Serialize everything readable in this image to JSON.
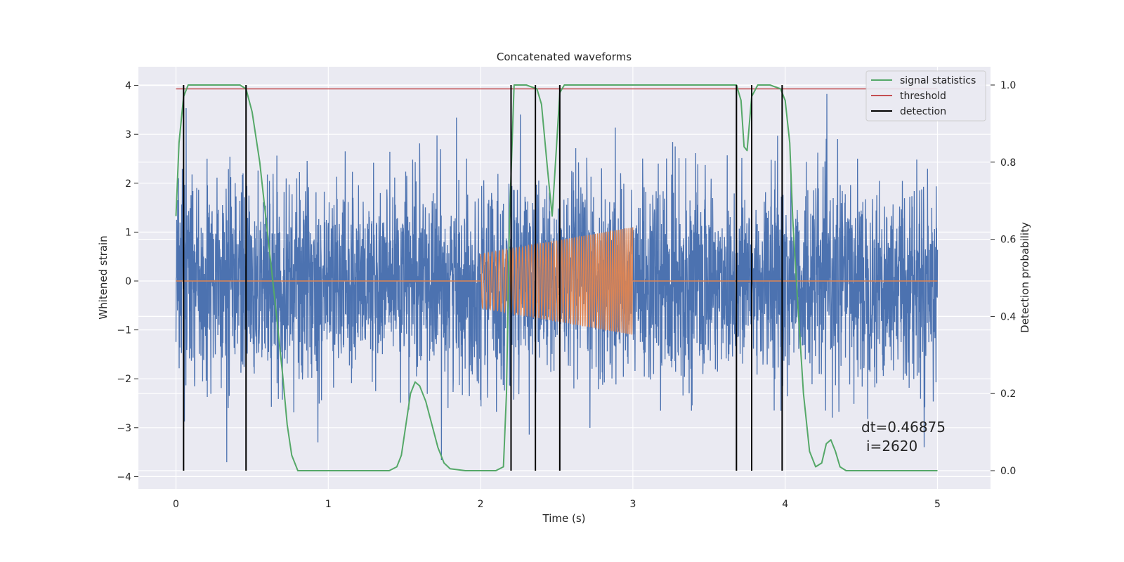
{
  "chart_data": {
    "type": "line",
    "title": "Concatenated waveforms",
    "xlabel": "Time (s)",
    "ylabel": "Whitened strain",
    "y2label": "Detection probability",
    "xlim": [
      -0.25,
      5.35
    ],
    "ylim": [
      -4.25,
      4.4
    ],
    "y2lim": [
      -0.05,
      1.04
    ],
    "xticks": [
      0,
      1,
      2,
      3,
      4,
      5
    ],
    "yticks": [
      -4,
      -3,
      -2,
      -1,
      0,
      1,
      2,
      3,
      4
    ],
    "y2ticks": [
      0.0,
      0.2,
      0.4,
      0.6,
      0.8,
      1.0
    ],
    "grid": true,
    "legend_position": "top-right",
    "colors": {
      "strain": "#4c72b0",
      "signal": "#dd8452",
      "statistics": "#55a868",
      "threshold": "#c44e52",
      "detection": "#000000",
      "background": "#eaeaf2"
    },
    "legend": [
      {
        "label": "signal statistics",
        "color": "#55a868"
      },
      {
        "label": "threshold",
        "color": "#c44e52"
      },
      {
        "label": "detection",
        "color": "#000000"
      }
    ],
    "series": [
      {
        "id": "strain",
        "axis": "left",
        "x_range": [
          0,
          5
        ],
        "amplitude_envelope": [
          -3.9,
          3.9
        ]
      },
      {
        "id": "injected_chirp",
        "axis": "left",
        "x_range": [
          2.0,
          3.0
        ],
        "amplitude_start": 0.55,
        "amplitude_end": 1.1
      },
      {
        "id": "signal_statistics",
        "axis": "right",
        "x": [
          0.0,
          0.02,
          0.05,
          0.08,
          0.15,
          0.3,
          0.42,
          0.46,
          0.5,
          0.55,
          0.6,
          0.65,
          0.7,
          0.73,
          0.76,
          0.8,
          0.9,
          1.2,
          1.4,
          1.45,
          1.48,
          1.51,
          1.54,
          1.57,
          1.6,
          1.64,
          1.68,
          1.72,
          1.76,
          1.8,
          1.9,
          2.1,
          2.15,
          2.17,
          2.19,
          2.22,
          2.3,
          2.37,
          2.4,
          2.44,
          2.47,
          2.5,
          2.52,
          2.55,
          2.6,
          3.0,
          3.4,
          3.68,
          3.71,
          3.73,
          3.75,
          3.78,
          3.82,
          3.9,
          3.97,
          4.0,
          4.03,
          4.05,
          4.08,
          4.12,
          4.16,
          4.2,
          4.24,
          4.27,
          4.3,
          4.33,
          4.36,
          4.4,
          4.6,
          4.9,
          5.0
        ],
        "y": [
          0.66,
          0.85,
          0.97,
          1.0,
          1.0,
          1.0,
          1.0,
          0.99,
          0.93,
          0.8,
          0.62,
          0.44,
          0.25,
          0.12,
          0.04,
          0.0,
          0.0,
          0.0,
          0.0,
          0.01,
          0.04,
          0.12,
          0.2,
          0.23,
          0.22,
          0.18,
          0.12,
          0.06,
          0.02,
          0.005,
          0.0,
          0.0,
          0.01,
          0.2,
          0.65,
          1.0,
          1.0,
          0.99,
          0.95,
          0.78,
          0.66,
          0.85,
          0.98,
          1.0,
          1.0,
          1.0,
          1.0,
          1.0,
          0.96,
          0.84,
          0.83,
          0.97,
          1.0,
          1.0,
          0.99,
          0.96,
          0.85,
          0.65,
          0.45,
          0.2,
          0.05,
          0.01,
          0.02,
          0.07,
          0.08,
          0.05,
          0.01,
          0.0,
          0.0,
          0.0,
          0.0
        ]
      },
      {
        "id": "threshold",
        "axis": "right",
        "x": [
          0,
          5
        ],
        "y": [
          0.99,
          0.99
        ]
      }
    ],
    "detections_x": [
      0.05,
      0.46,
      2.2,
      2.36,
      2.52,
      3.68,
      3.78,
      3.98
    ],
    "annotations": [
      "dt=0.46875",
      "i=2620"
    ]
  }
}
